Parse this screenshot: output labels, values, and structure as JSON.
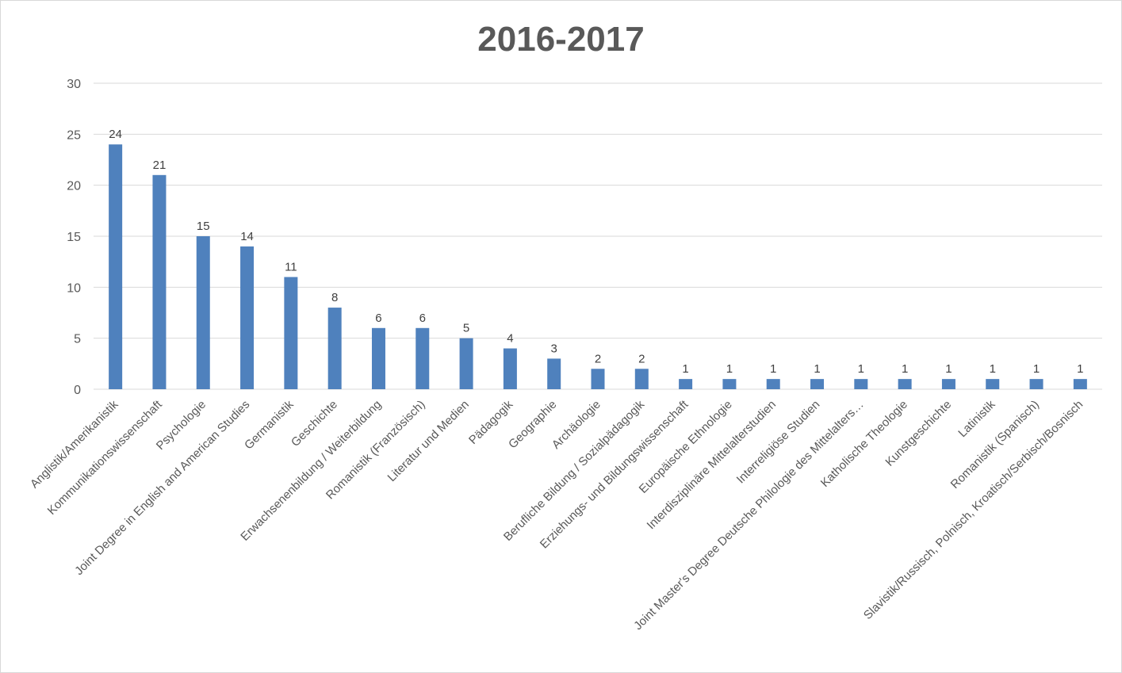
{
  "chart_data": {
    "type": "bar",
    "title": "2016-2017",
    "xlabel": "",
    "ylabel": "",
    "ylim": [
      0,
      30
    ],
    "yticks": [
      "0",
      "5",
      "10",
      "15",
      "20",
      "25",
      "30"
    ],
    "grid": true,
    "legend": "none",
    "bar_color": "#4f81bd",
    "categories": [
      "Anglistik/Amerikanistik",
      "Kommunikationswissenschaft",
      "Psychologie",
      "Joint Degree in English and American Studies",
      "Germanistik",
      "Geschichte",
      "Erwachsenenbildung / Weiterbildung",
      "Romanistik (Französisch)",
      "Literatur und Medien",
      "Pädagogik",
      "Geographie",
      "Archäologie",
      "Berufliche Bildung / Sozialpädagogik",
      "Erziehungs- und Bildungswissenschaft",
      "Europäische Ethnologie",
      "Interdisziplinäre Mittelalterstudien",
      "Interreligiöse Studien",
      "Joint Master's Degree Deutsche Philologie des Mittelalters…",
      "Katholische Theologie",
      "Kunstgeschichte",
      "Latinistik",
      "Romanistik (Spanisch)",
      "Slavistik/Russisch, Polnisch, Kroatisch/Serbisch/Bosnisch"
    ],
    "values": [
      24,
      21,
      15,
      14,
      11,
      8,
      6,
      6,
      5,
      4,
      3,
      2,
      2,
      1,
      1,
      1,
      1,
      1,
      1,
      1,
      1,
      1,
      1
    ]
  }
}
